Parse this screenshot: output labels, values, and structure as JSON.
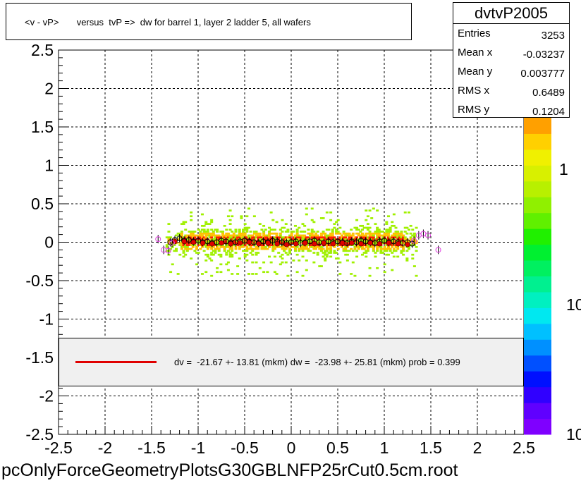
{
  "title": "<v - vP>       versus  tvP =>  dw for barrel 1, layer 2 ladder 5, all wafers",
  "filename": "pcOnlyForceGeometryPlotsG30GBLNFP25rCut0.5cm.root",
  "stats": {
    "name": "dvtvP2005",
    "rows": [
      {
        "label": "Entries",
        "value": "3253"
      },
      {
        "label": "Mean x",
        "value": "-0.03237"
      },
      {
        "label": "Mean y",
        "value": "0.003777"
      },
      {
        "label": "RMS x",
        "value": "0.6489"
      },
      {
        "label": "RMS y",
        "value": "0.1204"
      }
    ]
  },
  "legend": {
    "text": "dv =  -21.67 +- 13.81 (mkm) dw =  -23.98 +- 25.81 (mkm) prob = 0.399",
    "line_color": "#e00000"
  },
  "colorbar": {
    "labels": [
      "1",
      "10",
      "10"
    ],
    "colors": [
      "#7f00ff",
      "#6000ff",
      "#3000ff",
      "#0010ff",
      "#0050ff",
      "#0090ff",
      "#00c0ff",
      "#00e8f0",
      "#00f0c0",
      "#00f090",
      "#00f060",
      "#00f030",
      "#20f000",
      "#60f000",
      "#90f000",
      "#b8f000",
      "#d8f000",
      "#f0f000",
      "#ffd000",
      "#ffa000"
    ]
  },
  "chart_data": {
    "type": "scatter",
    "title": "<v - vP>       versus  tvP =>  dw for barrel 1, layer 2 ladder 5, all wafers",
    "xlim": [
      -2.5,
      2.5
    ],
    "ylim": [
      -2.5,
      2.5
    ],
    "x_ticks": [
      "-2.5",
      "-2",
      "-1.5",
      "-1",
      "-0.5",
      "0",
      "0.5",
      "1",
      "1.5",
      "2",
      "2.5"
    ],
    "y_ticks": [
      "-2.5",
      "-2",
      "-1.5",
      "-1",
      "-0.5",
      "0",
      "0.5",
      "1",
      "1.5",
      "2",
      "2.5"
    ],
    "grid": true,
    "histogram2d": {
      "x_range": [
        -1.35,
        1.35
      ],
      "y_range": [
        -0.45,
        0.45
      ],
      "core_color": "#ff2000",
      "mid_color": "#ffc000",
      "outer_color": "#a0f000"
    },
    "series": [
      {
        "name": "profile",
        "marker": "open-circle",
        "color": "#000000",
        "x": [
          -1.3,
          -1.25,
          -1.2,
          -1.15,
          -1.1,
          -1.05,
          -1.0,
          -0.95,
          -0.9,
          -0.85,
          -0.8,
          -0.75,
          -0.7,
          -0.65,
          -0.6,
          -0.55,
          -0.5,
          -0.45,
          -0.4,
          -0.35,
          -0.3,
          -0.25,
          -0.2,
          -0.15,
          -0.1,
          -0.05,
          0.0,
          0.05,
          0.1,
          0.15,
          0.2,
          0.25,
          0.3,
          0.35,
          0.4,
          0.45,
          0.5,
          0.55,
          0.6,
          0.65,
          0.7,
          0.75,
          0.8,
          0.85,
          0.9,
          0.95,
          1.0,
          1.05,
          1.1,
          1.15,
          1.2,
          1.25,
          1.3
        ],
        "y": [
          0.0,
          0.03,
          0.05,
          0.02,
          0.03,
          0.01,
          0.02,
          0.0,
          0.01,
          -0.01,
          0.0,
          0.02,
          0.01,
          -0.01,
          0.0,
          0.01,
          0.02,
          0.01,
          0.0,
          -0.01,
          0.01,
          0.0,
          0.02,
          0.01,
          0.0,
          -0.01,
          0.0,
          0.01,
          -0.01,
          0.0,
          0.01,
          0.02,
          0.0,
          -0.01,
          0.01,
          0.0,
          0.01,
          0.0,
          -0.01,
          0.01,
          0.0,
          0.02,
          0.01,
          0.0,
          -0.01,
          0.01,
          0.02,
          0.0,
          0.01,
          0.0,
          -0.01,
          0.0,
          -0.02
        ]
      },
      {
        "name": "fit-points",
        "marker": "filled-circle",
        "color": "#e00000",
        "x": [
          -1.25,
          -1.15,
          -1.05,
          -0.95,
          -0.85,
          -0.75,
          -0.65,
          -0.55,
          -0.45,
          -0.35,
          -0.25,
          -0.15,
          -0.05,
          0.05,
          0.15,
          0.25,
          0.35,
          0.45,
          0.55,
          0.65,
          0.75,
          0.85,
          0.95,
          1.05,
          1.15,
          1.25
        ],
        "y": [
          0.01,
          0.01,
          0.0,
          -0.01,
          -0.02,
          -0.01,
          -0.02,
          -0.01,
          0.0,
          -0.02,
          -0.01,
          -0.02,
          -0.03,
          -0.02,
          -0.01,
          -0.02,
          -0.01,
          -0.02,
          -0.01,
          -0.01,
          -0.02,
          -0.01,
          -0.02,
          -0.01,
          -0.02,
          -0.03
        ]
      },
      {
        "name": "outliers",
        "marker": "open-circle",
        "color": "#e040e0",
        "x": [
          -1.43,
          -1.37,
          -1.32,
          -1.28,
          1.32,
          1.37,
          1.42,
          1.47,
          1.58
        ],
        "y": [
          0.04,
          -0.1,
          -0.11,
          -0.01,
          0.02,
          0.09,
          0.11,
          0.09,
          -0.1
        ]
      }
    ]
  }
}
